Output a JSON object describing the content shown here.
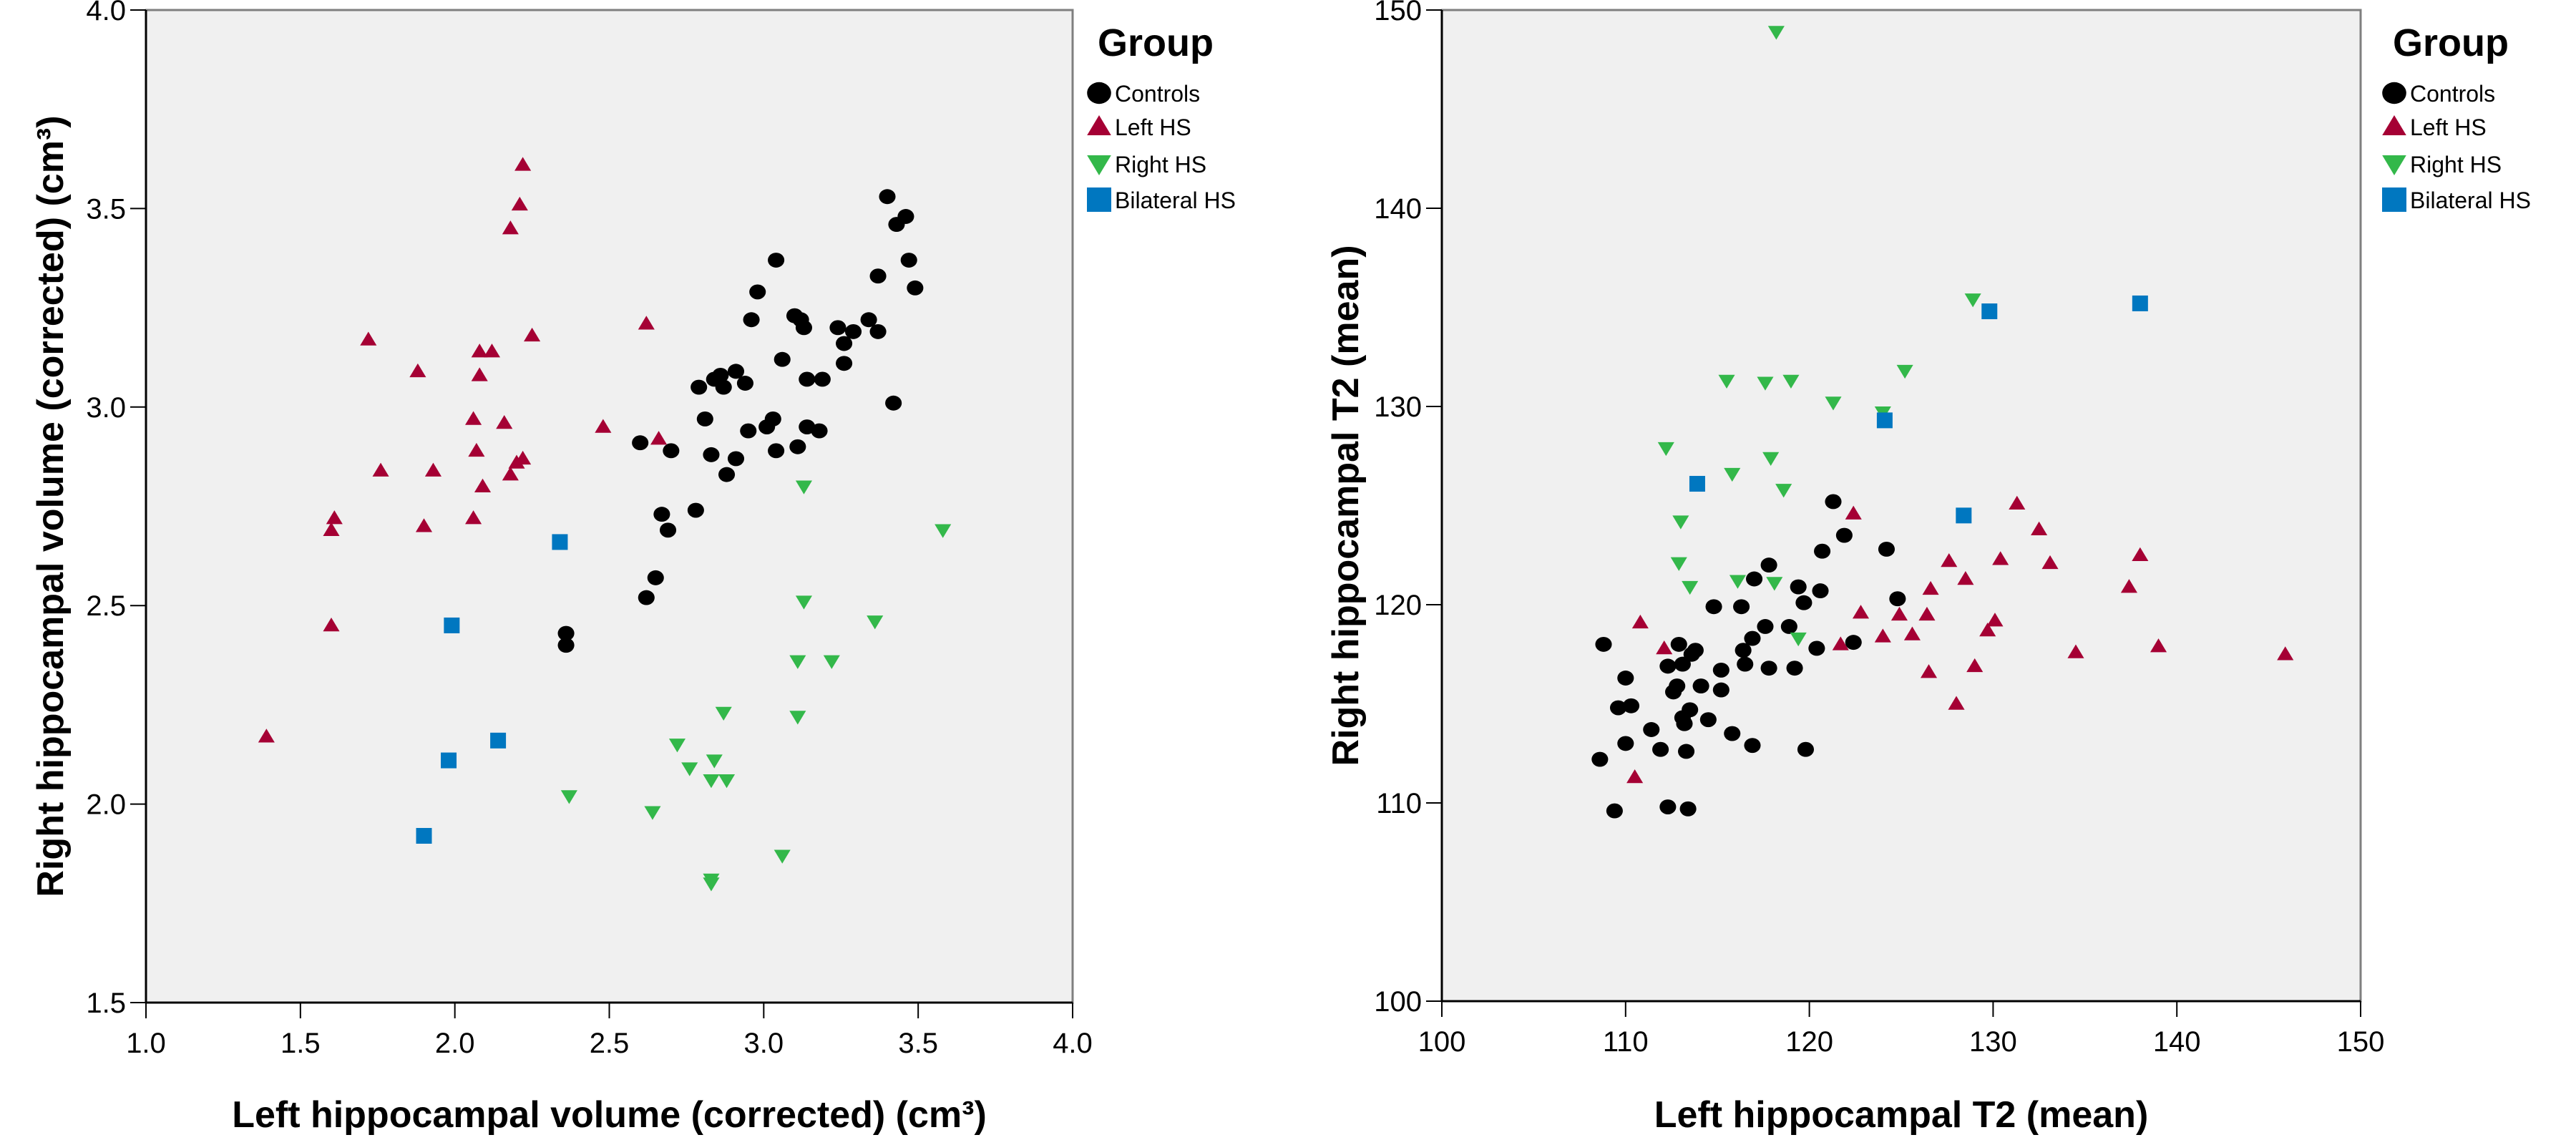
{
  "chart_data": [
    {
      "type": "scatter",
      "xlabel": "Left hippocampal volume (corrected) (cm³)",
      "ylabel": "Right hippocampal volume (corrected) (cm³)",
      "xlim": [
        1.0,
        4.0
      ],
      "ylim": [
        1.5,
        4.0
      ],
      "xticks": [
        "1.0",
        "1.5",
        "2.0",
        "2.5",
        "3.0",
        "3.5",
        "4.0"
      ],
      "yticks": [
        "1.5",
        "2.0",
        "2.5",
        "3.0",
        "3.5",
        "4.0"
      ],
      "grid": false,
      "legend_position": "right",
      "legend_title": "Group",
      "series": [
        {
          "name": "Controls",
          "marker": "circle",
          "color": "#000000",
          "points": [
            [
              3.4,
              3.53
            ],
            [
              3.46,
              3.48
            ],
            [
              3.43,
              3.46
            ],
            [
              3.04,
              3.37
            ],
            [
              3.47,
              3.37
            ],
            [
              3.37,
              3.33
            ],
            [
              3.49,
              3.3
            ],
            [
              2.98,
              3.29
            ],
            [
              2.96,
              3.22
            ],
            [
              3.1,
              3.23
            ],
            [
              3.12,
              3.22
            ],
            [
              3.13,
              3.2
            ],
            [
              3.34,
              3.22
            ],
            [
              3.37,
              3.19
            ],
            [
              3.24,
              3.2
            ],
            [
              3.29,
              3.19
            ],
            [
              3.26,
              3.16
            ],
            [
              3.06,
              3.12
            ],
            [
              3.26,
              3.11
            ],
            [
              2.84,
              3.07
            ],
            [
              2.86,
              3.08
            ],
            [
              2.91,
              3.09
            ],
            [
              2.87,
              3.05
            ],
            [
              2.94,
              3.06
            ],
            [
              2.79,
              3.05
            ],
            [
              3.14,
              3.07
            ],
            [
              3.19,
              3.07
            ],
            [
              3.42,
              3.01
            ],
            [
              2.81,
              2.97
            ],
            [
              3.03,
              2.97
            ],
            [
              3.01,
              2.95
            ],
            [
              2.95,
              2.94
            ],
            [
              3.14,
              2.95
            ],
            [
              3.18,
              2.94
            ],
            [
              2.6,
              2.91
            ],
            [
              2.7,
              2.89
            ],
            [
              2.83,
              2.88
            ],
            [
              2.91,
              2.87
            ],
            [
              3.04,
              2.89
            ],
            [
              3.11,
              2.9
            ],
            [
              2.88,
              2.83
            ],
            [
              2.78,
              2.74
            ],
            [
              2.67,
              2.73
            ],
            [
              2.69,
              2.69
            ],
            [
              2.65,
              2.57
            ],
            [
              2.62,
              2.52
            ],
            [
              2.36,
              2.43
            ],
            [
              2.36,
              2.4
            ]
          ]
        },
        {
          "name": "Left HS",
          "marker": "triangle-up",
          "color": "#a50034",
          "points": [
            [
              2.22,
              3.61
            ],
            [
              2.21,
              3.51
            ],
            [
              2.18,
              3.45
            ],
            [
              1.72,
              3.17
            ],
            [
              2.25,
              3.18
            ],
            [
              2.62,
              3.21
            ],
            [
              2.08,
              3.14
            ],
            [
              2.12,
              3.14
            ],
            [
              1.88,
              3.09
            ],
            [
              2.08,
              3.08
            ],
            [
              2.06,
              2.97
            ],
            [
              2.16,
              2.96
            ],
            [
              2.48,
              2.95
            ],
            [
              2.66,
              2.92
            ],
            [
              2.07,
              2.89
            ],
            [
              1.76,
              2.84
            ],
            [
              1.93,
              2.84
            ],
            [
              2.2,
              2.86
            ],
            [
              2.22,
              2.87
            ],
            [
              2.18,
              2.83
            ],
            [
              2.09,
              2.8
            ],
            [
              1.61,
              2.72
            ],
            [
              1.6,
              2.69
            ],
            [
              1.9,
              2.7
            ],
            [
              2.06,
              2.72
            ],
            [
              1.6,
              2.45
            ],
            [
              1.39,
              2.17
            ]
          ]
        },
        {
          "name": "Right HS",
          "marker": "triangle-down",
          "color": "#33b84a",
          "points": [
            [
              3.13,
              2.8
            ],
            [
              3.58,
              2.69
            ],
            [
              3.13,
              2.51
            ],
            [
              3.36,
              2.46
            ],
            [
              3.11,
              2.36
            ],
            [
              3.22,
              2.36
            ],
            [
              2.87,
              2.23
            ],
            [
              3.11,
              2.22
            ],
            [
              2.72,
              2.15
            ],
            [
              2.84,
              2.11
            ],
            [
              2.76,
              2.09
            ],
            [
              2.83,
              2.06
            ],
            [
              2.88,
              2.06
            ],
            [
              2.64,
              1.98
            ],
            [
              2.37,
              2.02
            ],
            [
              3.06,
              1.87
            ],
            [
              2.83,
              1.81
            ],
            [
              2.83,
              1.8
            ]
          ]
        },
        {
          "name": "Bilateral HS",
          "marker": "square",
          "color": "#0077c0",
          "points": [
            [
              2.34,
              2.66
            ],
            [
              1.99,
              2.45
            ],
            [
              2.14,
              2.16
            ],
            [
              1.98,
              2.11
            ],
            [
              1.9,
              1.92
            ]
          ]
        }
      ]
    },
    {
      "type": "scatter",
      "xlabel": "Left hippocampal T2 (mean)",
      "ylabel": "Right hippocampal T2 (mean)",
      "xlim": [
        100,
        150
      ],
      "ylim": [
        100,
        150
      ],
      "xticks": [
        "100",
        "110",
        "120",
        "130",
        "140",
        "150"
      ],
      "yticks": [
        "100",
        "110",
        "120",
        "130",
        "140",
        "150"
      ],
      "grid": false,
      "legend_position": "right",
      "legend_title": "Group",
      "series": [
        {
          "name": "Controls",
          "marker": "circle",
          "color": "#000000",
          "points": [
            [
              121.3,
              125.2
            ],
            [
              121.9,
              123.5
            ],
            [
              120.7,
              122.7
            ],
            [
              124.2,
              122.8
            ],
            [
              117.8,
              122.0
            ],
            [
              117.0,
              121.3
            ],
            [
              119.4,
              120.9
            ],
            [
              120.6,
              120.7
            ],
            [
              119.7,
              120.1
            ],
            [
              124.8,
              120.3
            ],
            [
              114.8,
              119.9
            ],
            [
              116.3,
              119.9
            ],
            [
              117.6,
              118.9
            ],
            [
              118.9,
              118.9
            ],
            [
              116.9,
              118.3
            ],
            [
              108.8,
              118.0
            ],
            [
              112.9,
              118.0
            ],
            [
              113.8,
              117.7
            ],
            [
              113.6,
              117.5
            ],
            [
              116.4,
              117.7
            ],
            [
              120.4,
              117.8
            ],
            [
              122.4,
              118.1
            ],
            [
              112.3,
              116.9
            ],
            [
              113.1,
              117.0
            ],
            [
              116.5,
              117.0
            ],
            [
              115.2,
              116.7
            ],
            [
              117.8,
              116.8
            ],
            [
              119.2,
              116.8
            ],
            [
              110.0,
              116.3
            ],
            [
              112.8,
              115.9
            ],
            [
              112.6,
              115.6
            ],
            [
              114.1,
              115.9
            ],
            [
              115.2,
              115.7
            ],
            [
              109.6,
              114.8
            ],
            [
              110.3,
              114.9
            ],
            [
              113.5,
              114.7
            ],
            [
              113.1,
              114.3
            ],
            [
              113.2,
              114.0
            ],
            [
              114.5,
              114.2
            ],
            [
              111.4,
              113.7
            ],
            [
              115.8,
              113.5
            ],
            [
              110.0,
              113.0
            ],
            [
              111.9,
              112.7
            ],
            [
              113.3,
              112.6
            ],
            [
              116.9,
              112.9
            ],
            [
              119.8,
              112.7
            ],
            [
              108.6,
              112.2
            ],
            [
              109.4,
              109.6
            ],
            [
              112.3,
              109.8
            ],
            [
              113.4,
              109.7
            ]
          ]
        },
        {
          "name": "Left HS",
          "marker": "triangle-up",
          "color": "#a50034",
          "points": [
            [
              122.4,
              124.6
            ],
            [
              127.6,
              122.2
            ],
            [
              126.6,
              120.8
            ],
            [
              110.8,
              119.1
            ],
            [
              122.8,
              119.6
            ],
            [
              124.9,
              119.5
            ],
            [
              126.4,
              119.5
            ],
            [
              112.1,
              117.8
            ],
            [
              121.7,
              118.0
            ],
            [
              124.0,
              118.4
            ],
            [
              125.6,
              118.5
            ],
            [
              126.5,
              116.6
            ],
            [
              128.0,
              115.0
            ],
            [
              110.5,
              111.3
            ],
            [
              131.3,
              125.1
            ],
            [
              132.5,
              123.8
            ],
            [
              130.4,
              122.3
            ],
            [
              133.1,
              122.1
            ],
            [
              138.0,
              122.5
            ],
            [
              128.5,
              121.3
            ],
            [
              137.4,
              120.9
            ],
            [
              130.1,
              119.2
            ],
            [
              129.7,
              118.7
            ],
            [
              134.5,
              117.6
            ],
            [
              139.0,
              117.9
            ],
            [
              145.9,
              117.5
            ],
            [
              129.0,
              116.9
            ]
          ]
        },
        {
          "name": "Right HS",
          "marker": "triangle-down",
          "color": "#33b84a",
          "points": [
            [
              118.2,
              148.9
            ],
            [
              128.9,
              135.4
            ],
            [
              125.2,
              131.8
            ],
            [
              115.5,
              131.3
            ],
            [
              117.6,
              131.2
            ],
            [
              119.0,
              131.3
            ],
            [
              121.3,
              130.2
            ],
            [
              124.0,
              129.7
            ],
            [
              112.2,
              127.9
            ],
            [
              117.9,
              127.4
            ],
            [
              115.8,
              126.6
            ],
            [
              118.6,
              125.8
            ],
            [
              113.0,
              124.2
            ],
            [
              112.9,
              122.1
            ],
            [
              113.5,
              120.9
            ],
            [
              116.1,
              121.2
            ],
            [
              118.1,
              121.1
            ],
            [
              119.4,
              118.3
            ]
          ]
        },
        {
          "name": "Bilateral HS",
          "marker": "square",
          "color": "#0077c0",
          "points": [
            [
              113.9,
              126.1
            ],
            [
              138.0,
              135.2
            ],
            [
              129.8,
              134.8
            ],
            [
              124.1,
              129.3
            ],
            [
              128.4,
              124.5
            ]
          ]
        }
      ]
    }
  ]
}
